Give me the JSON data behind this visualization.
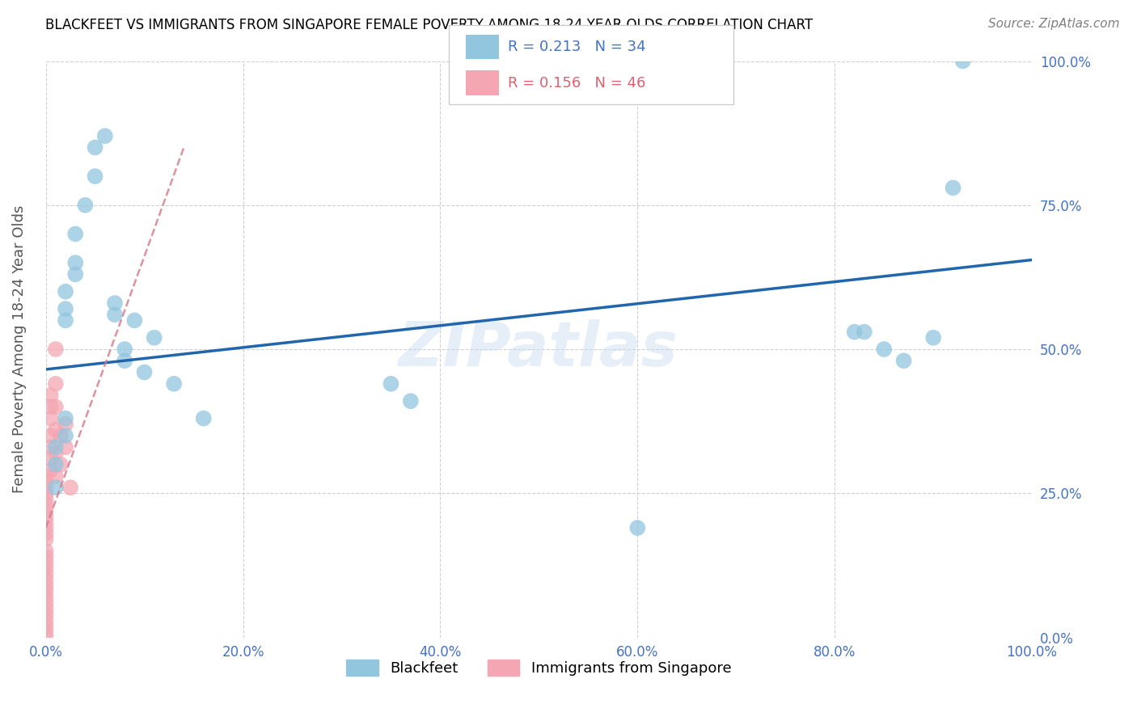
{
  "title": "BLACKFEET VS IMMIGRANTS FROM SINGAPORE FEMALE POVERTY AMONG 18-24 YEAR OLDS CORRELATION CHART",
  "source": "Source: ZipAtlas.com",
  "ylabel": "Female Poverty Among 18-24 Year Olds",
  "xlim": [
    0,
    1
  ],
  "ylim": [
    0,
    1
  ],
  "xtick_labels": [
    "0.0%",
    "",
    "20.0%",
    "",
    "40.0%",
    "",
    "60.0%",
    "",
    "80.0%",
    "",
    "100.0%"
  ],
  "xtick_vals": [
    0,
    0.1,
    0.2,
    0.3,
    0.4,
    0.5,
    0.6,
    0.7,
    0.8,
    0.9,
    1.0
  ],
  "ytick_labels": [
    "0.0%",
    "25.0%",
    "50.0%",
    "75.0%",
    "100.0%"
  ],
  "ytick_vals": [
    0,
    0.25,
    0.5,
    0.75,
    1.0
  ],
  "legend_labels": [
    "Blackfeet",
    "Immigrants from Singapore"
  ],
  "blue_R": "R = 0.213",
  "blue_N": "N = 34",
  "pink_R": "R = 0.156",
  "pink_N": "N = 46",
  "blue_color": "#92c5de",
  "pink_color": "#f4a7b3",
  "blue_line_color": "#2166ac",
  "pink_line_color": "#d4788a",
  "watermark": "ZIPatlas",
  "blue_x": [
    0.01,
    0.01,
    0.01,
    0.02,
    0.02,
    0.02,
    0.02,
    0.02,
    0.03,
    0.03,
    0.03,
    0.04,
    0.05,
    0.05,
    0.06,
    0.07,
    0.07,
    0.08,
    0.08,
    0.09,
    0.1,
    0.11,
    0.13,
    0.16,
    0.35,
    0.37,
    0.6,
    0.82,
    0.83,
    0.85,
    0.87,
    0.9,
    0.92,
    0.93
  ],
  "blue_y": [
    0.26,
    0.3,
    0.33,
    0.35,
    0.38,
    0.55,
    0.57,
    0.6,
    0.63,
    0.65,
    0.7,
    0.75,
    0.8,
    0.85,
    0.87,
    0.56,
    0.58,
    0.48,
    0.5,
    0.55,
    0.46,
    0.52,
    0.44,
    0.38,
    0.44,
    0.41,
    0.19,
    0.53,
    0.53,
    0.5,
    0.48,
    0.52,
    0.78,
    1.0
  ],
  "pink_x": [
    0.0,
    0.0,
    0.0,
    0.0,
    0.0,
    0.0,
    0.0,
    0.0,
    0.0,
    0.0,
    0.0,
    0.0,
    0.0,
    0.0,
    0.0,
    0.0,
    0.0,
    0.0,
    0.0,
    0.0,
    0.0,
    0.0,
    0.0,
    0.0,
    0.0,
    0.0,
    0.0,
    0.0,
    0.005,
    0.005,
    0.005,
    0.005,
    0.005,
    0.005,
    0.005,
    0.01,
    0.01,
    0.01,
    0.01,
    0.01,
    0.01,
    0.015,
    0.015,
    0.02,
    0.02,
    0.025
  ],
  "pink_y": [
    0.0,
    0.01,
    0.02,
    0.03,
    0.04,
    0.05,
    0.06,
    0.07,
    0.08,
    0.09,
    0.1,
    0.11,
    0.12,
    0.13,
    0.14,
    0.15,
    0.17,
    0.18,
    0.19,
    0.2,
    0.21,
    0.22,
    0.23,
    0.24,
    0.25,
    0.26,
    0.27,
    0.28,
    0.29,
    0.31,
    0.33,
    0.35,
    0.38,
    0.4,
    0.42,
    0.28,
    0.32,
    0.36,
    0.4,
    0.44,
    0.5,
    0.3,
    0.35,
    0.33,
    0.37,
    0.26
  ],
  "blue_line_y0": 0.465,
  "blue_line_y1": 0.655,
  "pink_line_x0": 0.0,
  "pink_line_y0": 0.19,
  "pink_line_x1": 0.14,
  "pink_line_y1": 0.85
}
